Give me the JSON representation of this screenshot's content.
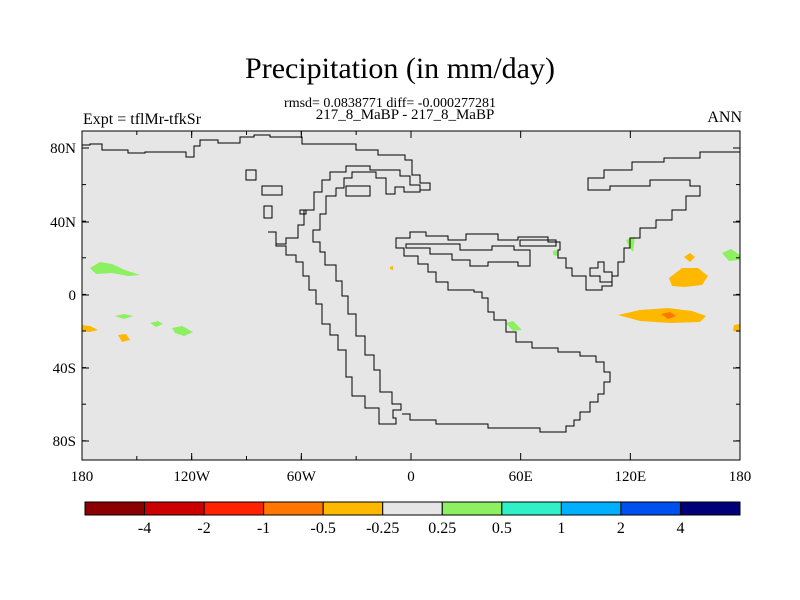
{
  "title": "Precipitation (in mm/day)",
  "stats": "rmsd= 0.0838771 diff= -0.000277281",
  "cases": "217_8_MaBP - 217_8_MaBP",
  "expt_label": "Expt = tflMr-tfkSr",
  "season": "ANN",
  "map": {
    "lat_ticks": [
      "80N",
      "40N",
      "0",
      "40S",
      "80S"
    ],
    "lon_ticks": [
      "180",
      "120W",
      "60W",
      "0",
      "60E",
      "120E",
      "180"
    ],
    "background_color": "#e6e6e6"
  },
  "colorbar": {
    "colors": [
      "#8b0000",
      "#cc0000",
      "#ff2200",
      "#ff7700",
      "#ffb800",
      "#e6e6e6",
      "#8cf060",
      "#30f0c8",
      "#00b0ff",
      "#0050f0",
      "#00007a"
    ],
    "labels": [
      "-4",
      "-2",
      "-1",
      "-0.5",
      "-0.25",
      "0.25",
      "0.5",
      "1",
      "2",
      "4"
    ]
  }
}
